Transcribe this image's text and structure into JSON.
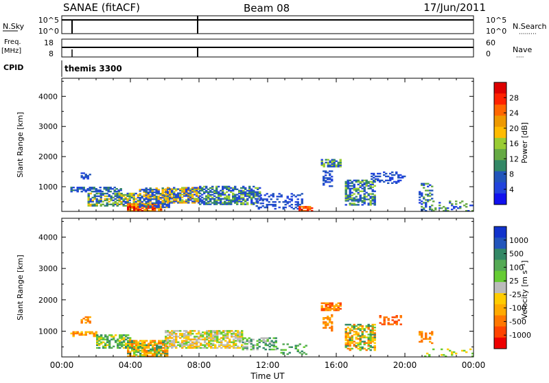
{
  "header": {
    "station": "SANAE (fitACF)",
    "beam": "Beam 08",
    "date": "17/Jun/2011"
  },
  "nsky": {
    "label": "N.Sky",
    "ticks": [
      "10^5",
      "10^0"
    ],
    "right_ticks": [
      "10^5",
      "10^0"
    ],
    "right_label": "N.Search",
    "right_label_dots": "·········"
  },
  "freq": {
    "label_top": "Freq.",
    "label_unit": "[MHz]",
    "ticks": [
      "18",
      "8"
    ],
    "right_ticks": [
      "60",
      "0"
    ],
    "right_label": "Nave",
    "right_label_dots": "····"
  },
  "cpid": {
    "label": "CPID",
    "value": "themis 3300"
  },
  "chart_data": [
    {
      "type": "heatmap",
      "title": "",
      "ylabel": "Slant Range [km]",
      "xlabel": "",
      "xlim": [
        0,
        24
      ],
      "ylim": [
        180,
        4600
      ],
      "yticks": [
        1000,
        2000,
        3000,
        4000
      ],
      "colorbar": {
        "label": "Power [dB]",
        "ticks": [
          "28",
          "24",
          "20",
          "16",
          "12",
          "8",
          "4"
        ],
        "colors": [
          "#dd0000",
          "#ff2200",
          "#ff6600",
          "#ee9900",
          "#ffbb00",
          "#99cc33",
          "#66aa44",
          "#338866",
          "#2255bb",
          "#2244dd",
          "#1111ee"
        ]
      },
      "regions": [
        {
          "t0": 1.1,
          "t1": 1.7,
          "r0": 1250,
          "r1": 1450,
          "colors": [
            "#2244dd",
            "#2255bb"
          ],
          "density": 0.5
        },
        {
          "t0": 0.5,
          "t1": 3.5,
          "r0": 820,
          "r1": 1000,
          "colors": [
            "#2244dd",
            "#2255bb",
            "#338866"
          ],
          "density": 0.65
        },
        {
          "t0": 1.5,
          "t1": 4.5,
          "r0": 350,
          "r1": 800,
          "colors": [
            "#2244dd",
            "#2255bb",
            "#338866",
            "#66aa44",
            "#99cc33",
            "#ffbb00"
          ],
          "density": 0.7
        },
        {
          "t0": 3.8,
          "t1": 5.8,
          "r0": 180,
          "r1": 450,
          "colors": [
            "#ff2200",
            "#dd0000",
            "#ff6600",
            "#ee9900",
            "#ffbb00"
          ],
          "density": 0.85
        },
        {
          "t0": 4.5,
          "t1": 6.2,
          "r0": 300,
          "r1": 950,
          "colors": [
            "#2244dd",
            "#2255bb",
            "#338866",
            "#ffbb00"
          ],
          "density": 0.7
        },
        {
          "t0": 6.0,
          "t1": 8.0,
          "r0": 450,
          "r1": 950,
          "colors": [
            "#ffbb00",
            "#ee9900",
            "#99cc33",
            "#2255bb",
            "#2244dd"
          ],
          "density": 0.8
        },
        {
          "t0": 8.0,
          "t1": 11.5,
          "r0": 400,
          "r1": 1000,
          "colors": [
            "#2244dd",
            "#2255bb",
            "#338866",
            "#99cc33"
          ],
          "density": 0.65
        },
        {
          "t0": 11.3,
          "t1": 14.0,
          "r0": 250,
          "r1": 750,
          "colors": [
            "#2244dd",
            "#2255bb"
          ],
          "density": 0.35
        },
        {
          "t0": 13.8,
          "t1": 14.6,
          "r0": 180,
          "r1": 320,
          "colors": [
            "#ff6600",
            "#ee9900",
            "#ff2200"
          ],
          "density": 0.8
        },
        {
          "t0": 15.1,
          "t1": 16.2,
          "r0": 1650,
          "r1": 1900,
          "colors": [
            "#2244dd",
            "#2255bb",
            "#338866",
            "#99cc33"
          ],
          "density": 0.7
        },
        {
          "t0": 15.2,
          "t1": 15.7,
          "r0": 1000,
          "r1": 1500,
          "colors": [
            "#2244dd",
            "#2255bb"
          ],
          "density": 0.45
        },
        {
          "t0": 16.5,
          "t1": 18.3,
          "r0": 380,
          "r1": 1200,
          "colors": [
            "#2244dd",
            "#2255bb",
            "#338866",
            "#99cc33"
          ],
          "density": 0.6
        },
        {
          "t0": 18.0,
          "t1": 20.0,
          "r0": 1100,
          "r1": 1500,
          "colors": [
            "#2244dd",
            "#2255bb"
          ],
          "density": 0.3
        },
        {
          "t0": 20.8,
          "t1": 21.6,
          "r0": 180,
          "r1": 1100,
          "colors": [
            "#2244dd",
            "#2255bb",
            "#66aa44"
          ],
          "density": 0.35
        },
        {
          "t0": 21.6,
          "t1": 24.0,
          "r0": 180,
          "r1": 500,
          "colors": [
            "#2244dd",
            "#66aa44"
          ],
          "density": 0.18
        }
      ]
    },
    {
      "type": "heatmap",
      "title": "",
      "ylabel": "Slant Range [km]",
      "xlabel": "Time UT",
      "xlim": [
        0,
        24
      ],
      "ylim": [
        180,
        4600
      ],
      "yticks": [
        1000,
        2000,
        3000,
        4000
      ],
      "xticks": [
        "00:00",
        "04:00",
        "08:00",
        "12:00",
        "16:00",
        "20:00",
        "00:00"
      ],
      "colorbar": {
        "label": "Velocity [m s⁻¹]",
        "ticks": [
          "1000",
          "500",
          "100",
          "25",
          "-25",
          "-100",
          "-500",
          "-1000"
        ],
        "colors": [
          "#1133cc",
          "#2255bb",
          "#338866",
          "#55aa55",
          "#66cc33",
          "#bbbbbb",
          "#ffcc00",
          "#ffaa00",
          "#ff7700",
          "#ff4400",
          "#ee0000"
        ]
      },
      "regions": [
        {
          "t0": 1.1,
          "t1": 1.7,
          "r0": 1250,
          "r1": 1450,
          "colors": [
            "#ff7700",
            "#ffaa00"
          ],
          "density": 0.5
        },
        {
          "t0": 0.5,
          "t1": 2.0,
          "r0": 820,
          "r1": 1000,
          "colors": [
            "#ffaa00",
            "#ffcc00",
            "#ff7700"
          ],
          "density": 0.65
        },
        {
          "t0": 2.0,
          "t1": 4.0,
          "r0": 450,
          "r1": 900,
          "colors": [
            "#338866",
            "#55aa55",
            "#66cc33",
            "#ffcc00"
          ],
          "density": 0.65
        },
        {
          "t0": 3.8,
          "t1": 6.2,
          "r0": 180,
          "r1": 700,
          "colors": [
            "#ffaa00",
            "#ffcc00",
            "#66cc33",
            "#338866",
            "#ff7700"
          ],
          "density": 0.8
        },
        {
          "t0": 6.0,
          "t1": 10.5,
          "r0": 450,
          "r1": 1000,
          "colors": [
            "#bbbbbb",
            "#bbbbbb",
            "#ffcc00",
            "#ffaa00",
            "#66cc33"
          ],
          "density": 0.7
        },
        {
          "t0": 10.5,
          "t1": 12.5,
          "r0": 400,
          "r1": 800,
          "colors": [
            "#bbbbbb",
            "#66cc33",
            "#338866"
          ],
          "density": 0.45
        },
        {
          "t0": 12.5,
          "t1": 14.2,
          "r0": 250,
          "r1": 600,
          "colors": [
            "#338866",
            "#66cc33",
            "#55aa55"
          ],
          "density": 0.3
        },
        {
          "t0": 15.1,
          "t1": 16.2,
          "r0": 1650,
          "r1": 1900,
          "colors": [
            "#ff7700",
            "#ffaa00",
            "#ff4400"
          ],
          "density": 0.75
        },
        {
          "t0": 15.2,
          "t1": 15.7,
          "r0": 1000,
          "r1": 1500,
          "colors": [
            "#ff7700",
            "#ffaa00"
          ],
          "density": 0.45
        },
        {
          "t0": 16.5,
          "t1": 18.3,
          "r0": 380,
          "r1": 1200,
          "colors": [
            "#ffaa00",
            "#ff7700",
            "#ffcc00",
            "#66cc33",
            "#338866"
          ],
          "density": 0.6
        },
        {
          "t0": 18.5,
          "t1": 19.8,
          "r0": 1200,
          "r1": 1500,
          "colors": [
            "#ff7700",
            "#ff4400"
          ],
          "density": 0.35
        },
        {
          "t0": 20.8,
          "t1": 21.6,
          "r0": 600,
          "r1": 1000,
          "colors": [
            "#ffaa00",
            "#ff7700"
          ],
          "density": 0.35
        },
        {
          "t0": 21.0,
          "t1": 24.0,
          "r0": 180,
          "r1": 450,
          "colors": [
            "#ffcc00",
            "#66cc33"
          ],
          "density": 0.18
        }
      ]
    }
  ]
}
